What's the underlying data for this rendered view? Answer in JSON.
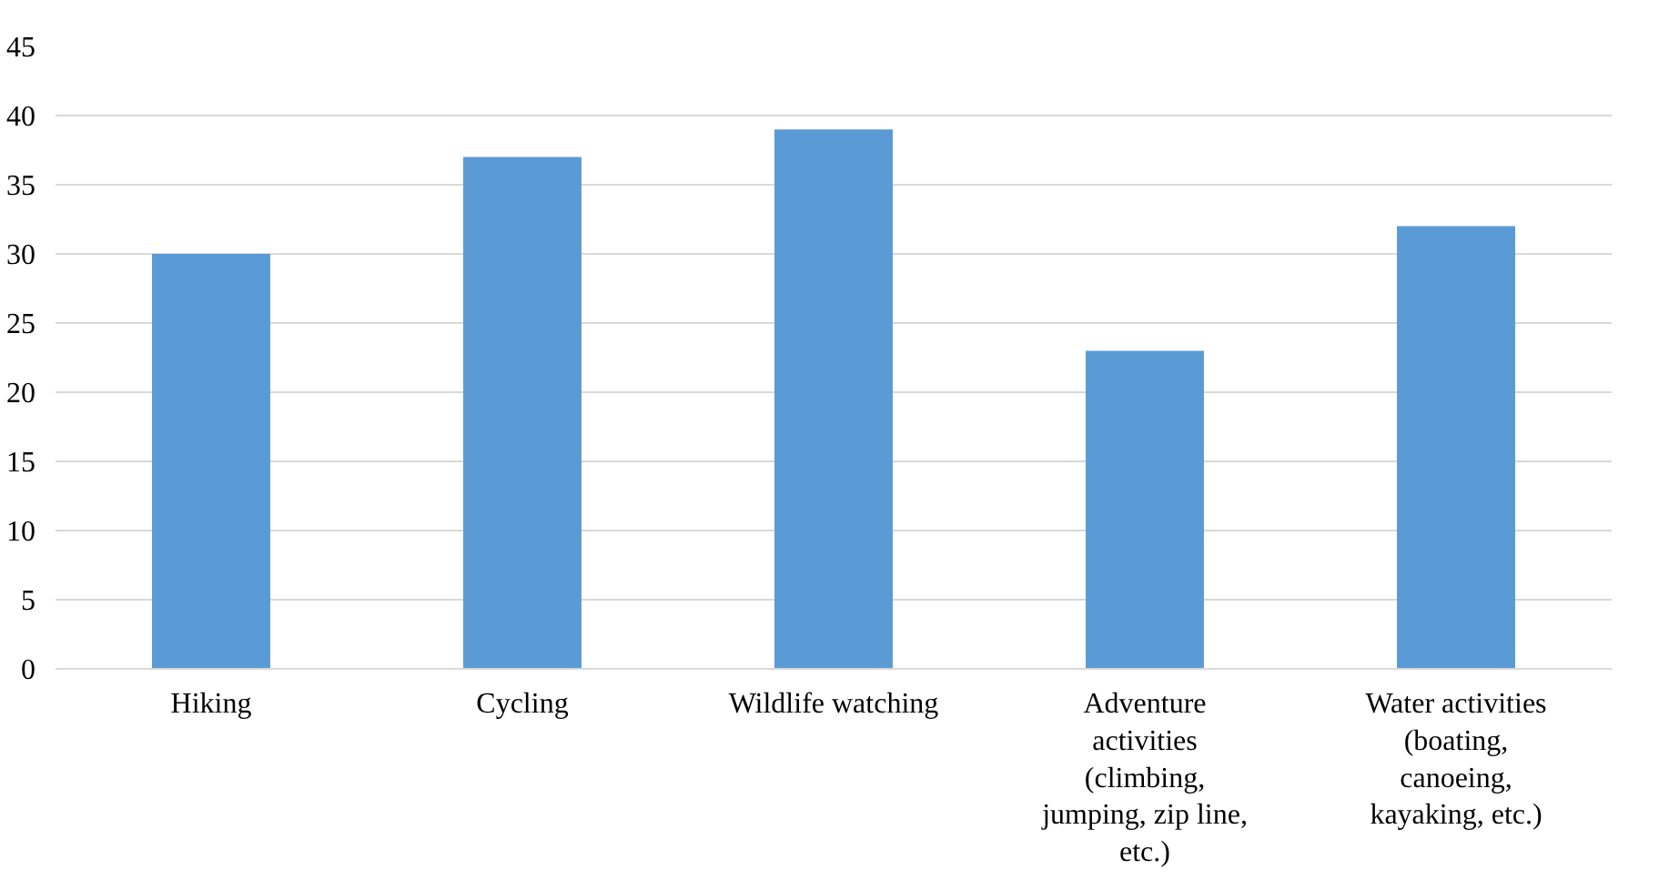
{
  "chart_data": {
    "type": "bar",
    "categories": [
      "Hiking",
      "Cycling",
      "Wildlife watching",
      "Adventure activities (climbing, jumping, zip line, etc.)",
      "Water activities (boating, canoeing, kayaking, etc.)"
    ],
    "values": [
      30,
      37,
      39,
      23,
      32
    ],
    "color": "#5b9bd5",
    "ylim": [
      0,
      45
    ],
    "yticks": [
      0,
      5,
      10,
      15,
      20,
      25,
      30,
      35,
      40,
      45
    ],
    "grid": "y"
  }
}
